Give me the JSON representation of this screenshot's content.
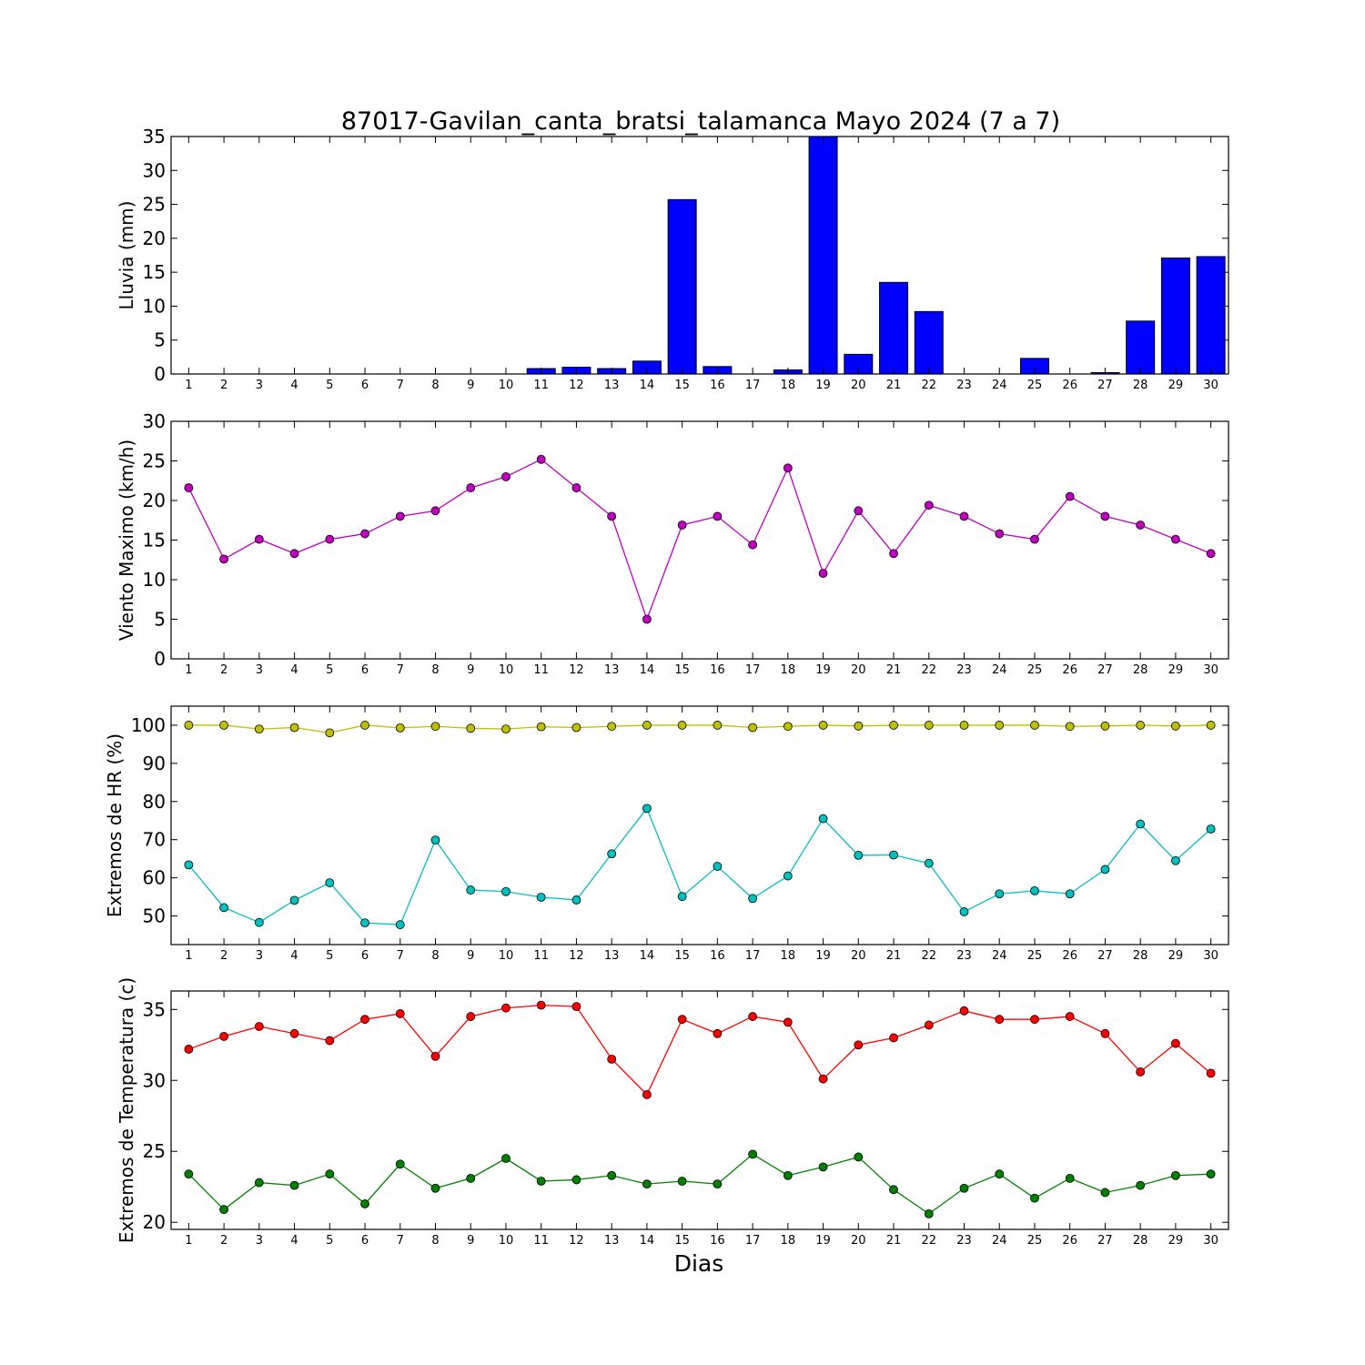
{
  "figure": {
    "title": "87017-Gavilan_canta_bratsi_talamanca Mayo 2024  (7 a 7)",
    "xlabel": "Dias"
  },
  "chart_data": [
    {
      "type": "bar",
      "ylabel": "Lluvia (mm)",
      "x": [
        1,
        2,
        3,
        4,
        5,
        6,
        7,
        8,
        9,
        10,
        11,
        12,
        13,
        14,
        15,
        16,
        17,
        18,
        19,
        20,
        21,
        22,
        23,
        24,
        25,
        26,
        27,
        28,
        29,
        30
      ],
      "xlim": [
        0.5,
        30.5
      ],
      "ylim": [
        0,
        35
      ],
      "yticks": [
        0,
        5,
        10,
        15,
        20,
        25,
        30,
        35
      ],
      "grid": false,
      "series": [
        {
          "color": "#0000ff",
          "values": [
            0,
            0,
            0,
            0,
            0,
            0,
            0,
            0,
            0,
            0,
            0.8,
            1.0,
            0.8,
            1.9,
            25.7,
            1.1,
            0,
            0.6,
            35.0,
            2.9,
            13.5,
            9.2,
            0,
            0,
            2.3,
            0,
            0.2,
            7.8,
            17.1,
            17.3
          ]
        }
      ]
    },
    {
      "type": "line",
      "ylabel": "Viento Maximo (km/h)",
      "x": [
        1,
        2,
        3,
        4,
        5,
        6,
        7,
        8,
        9,
        10,
        11,
        12,
        13,
        14,
        15,
        16,
        17,
        18,
        19,
        20,
        21,
        22,
        23,
        24,
        25,
        26,
        27,
        28,
        29,
        30
      ],
      "xlim": [
        0.5,
        30.5
      ],
      "ylim": [
        0,
        30
      ],
      "yticks": [
        0,
        5,
        10,
        15,
        20,
        25,
        30
      ],
      "grid": false,
      "series": [
        {
          "color": "#bf00bf",
          "values": [
            21.6,
            12.6,
            15.1,
            13.3,
            15.1,
            15.8,
            18.0,
            18.7,
            21.6,
            23.0,
            25.2,
            21.6,
            18.0,
            5.0,
            16.9,
            18.0,
            14.4,
            24.1,
            10.8,
            18.7,
            13.3,
            19.4,
            18.0,
            15.8,
            15.1,
            20.5,
            18.0,
            16.9,
            15.1,
            13.3
          ]
        }
      ]
    },
    {
      "type": "line",
      "ylabel": "Extremos de HR (%)",
      "x": [
        1,
        2,
        3,
        4,
        5,
        6,
        7,
        8,
        9,
        10,
        11,
        12,
        13,
        14,
        15,
        16,
        17,
        18,
        19,
        20,
        21,
        22,
        23,
        24,
        25,
        26,
        27,
        28,
        29,
        30
      ],
      "xlim": [
        0.5,
        30.5
      ],
      "ylim": [
        42.5,
        105
      ],
      "yticks": [
        50,
        60,
        70,
        80,
        90,
        100
      ],
      "grid": false,
      "series": [
        {
          "color": "#bfbf00",
          "values": [
            100,
            100,
            99,
            99.4,
            98,
            100,
            99.3,
            99.7,
            99.2,
            99,
            99.6,
            99.4,
            99.7,
            100,
            100,
            100,
            99.4,
            99.7,
            100,
            99.8,
            100,
            100,
            100,
            100,
            100,
            99.7,
            99.8,
            100,
            99.8,
            100
          ]
        },
        {
          "color": "#00bfbf",
          "values": [
            63.4,
            52.2,
            48.3,
            54.1,
            58.7,
            48.2,
            47.7,
            69.9,
            56.8,
            56.4,
            54.9,
            54.2,
            66.3,
            78.2,
            55.1,
            63.0,
            54.6,
            60.5,
            75.5,
            65.9,
            66.0,
            63.8,
            51.1,
            55.8,
            56.6,
            55.8,
            62.2,
            74.1,
            64.5,
            72.8
          ]
        }
      ]
    },
    {
      "type": "line",
      "ylabel": "Extremos de Temperatura (c)",
      "x": [
        1,
        2,
        3,
        4,
        5,
        6,
        7,
        8,
        9,
        10,
        11,
        12,
        13,
        14,
        15,
        16,
        17,
        18,
        19,
        20,
        21,
        22,
        23,
        24,
        25,
        26,
        27,
        28,
        29,
        30
      ],
      "xlim": [
        0.5,
        30.5
      ],
      "ylim": [
        19.5,
        36.3
      ],
      "yticks": [
        20,
        25,
        30,
        35
      ],
      "grid": false,
      "series": [
        {
          "color": "#ff0000",
          "values": [
            32.2,
            33.1,
            33.8,
            33.3,
            32.8,
            34.3,
            34.7,
            31.7,
            34.5,
            35.1,
            35.3,
            35.2,
            31.5,
            29.0,
            34.3,
            33.3,
            34.5,
            34.1,
            30.1,
            32.5,
            33.0,
            33.9,
            34.9,
            34.3,
            34.3,
            34.5,
            33.3,
            30.6,
            32.6,
            30.5
          ]
        },
        {
          "color": "#008000",
          "values": [
            23.4,
            20.9,
            22.8,
            22.6,
            23.4,
            21.3,
            24.1,
            22.4,
            23.1,
            24.5,
            22.9,
            23.0,
            23.3,
            22.7,
            22.9,
            22.7,
            24.8,
            23.3,
            23.9,
            24.6,
            22.3,
            20.6,
            22.4,
            23.4,
            21.7,
            23.1,
            22.1,
            22.6,
            23.3,
            23.4
          ]
        }
      ]
    }
  ]
}
